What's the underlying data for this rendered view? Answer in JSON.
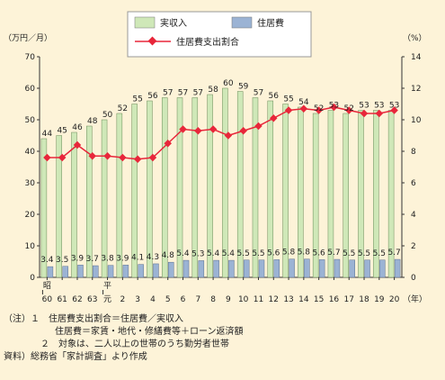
{
  "chart_data": {
    "type": "bar",
    "left_unit": "（万円／月）",
    "right_unit": "（%）",
    "x_unit": "（年）",
    "left_ticks": [
      "0",
      "10",
      "20",
      "30",
      "40",
      "50",
      "60",
      "70"
    ],
    "right_ticks": [
      "0",
      "2",
      "4",
      "6",
      "8",
      "10",
      "12",
      "14"
    ],
    "ylim_left": [
      0,
      70
    ],
    "ylim_right": [
      0,
      14
    ],
    "categories": [
      "60",
      "61",
      "62",
      "63",
      "元",
      "2",
      "3",
      "4",
      "5",
      "6",
      "7",
      "8",
      "9",
      "10",
      "11",
      "12",
      "13",
      "14",
      "15",
      "16",
      "17",
      "18",
      "19",
      "20"
    ],
    "era_marks": [
      {
        "index": 0,
        "label": "昭"
      },
      {
        "index": 4,
        "label": "平"
      }
    ],
    "series": [
      {
        "name": "実収入",
        "color": "#cfe8b8",
        "values": [
          44,
          45,
          46,
          48,
          50,
          52,
          55,
          56,
          57,
          57,
          57,
          58,
          60,
          59,
          57,
          56,
          55,
          54,
          52,
          53,
          52,
          53,
          53,
          53
        ],
        "labels": [
          "44",
          "45",
          "46",
          "48",
          "50",
          "52",
          "55",
          "56",
          "57",
          "57",
          "57",
          "58",
          "60",
          "59",
          "57",
          "56",
          "55",
          "54",
          "52",
          "53",
          "52",
          "53",
          "53",
          "53"
        ]
      },
      {
        "name": "住居費",
        "color": "#9bb3d4",
        "values": [
          3.4,
          3.5,
          3.9,
          3.7,
          3.8,
          3.9,
          4.1,
          4.3,
          4.8,
          5.4,
          5.3,
          5.4,
          5.4,
          5.5,
          5.5,
          5.6,
          5.8,
          5.8,
          5.6,
          5.7,
          5.5,
          5.5,
          5.5,
          5.7
        ],
        "labels": [
          "3.4",
          "3.5",
          "3.9",
          "3.7",
          "3.8",
          "3.9",
          "4.1",
          "4.3",
          "4.8",
          "5.4",
          "5.3",
          "5.4",
          "5.4",
          "5.5",
          "5.5",
          "5.6",
          "5.8",
          "5.8",
          "5.6",
          "5.7",
          "5.5",
          "5.5",
          "5.5",
          "5.7"
        ]
      },
      {
        "name": "住居費支出割合",
        "color": "#e8263a",
        "axis": "right",
        "values": [
          7.6,
          7.6,
          8.4,
          7.7,
          7.7,
          7.6,
          7.5,
          7.6,
          8.5,
          9.4,
          9.3,
          9.4,
          9.0,
          9.3,
          9.6,
          10.1,
          10.6,
          10.7,
          10.6,
          10.8,
          10.6,
          10.4,
          10.4,
          10.6
        ]
      }
    ],
    "grid": false,
    "legend_position": "top"
  },
  "notes": {
    "l1": "（注）１　住居費支出割合＝住居費／実収入",
    "l2": "住居費＝家賃・地代・修繕費等＋ローン返済額",
    "l3": "２　対象は、二人以上の世帯のうち勤労者世帯",
    "l4": "資料）総務省「家計調査」より作成"
  }
}
